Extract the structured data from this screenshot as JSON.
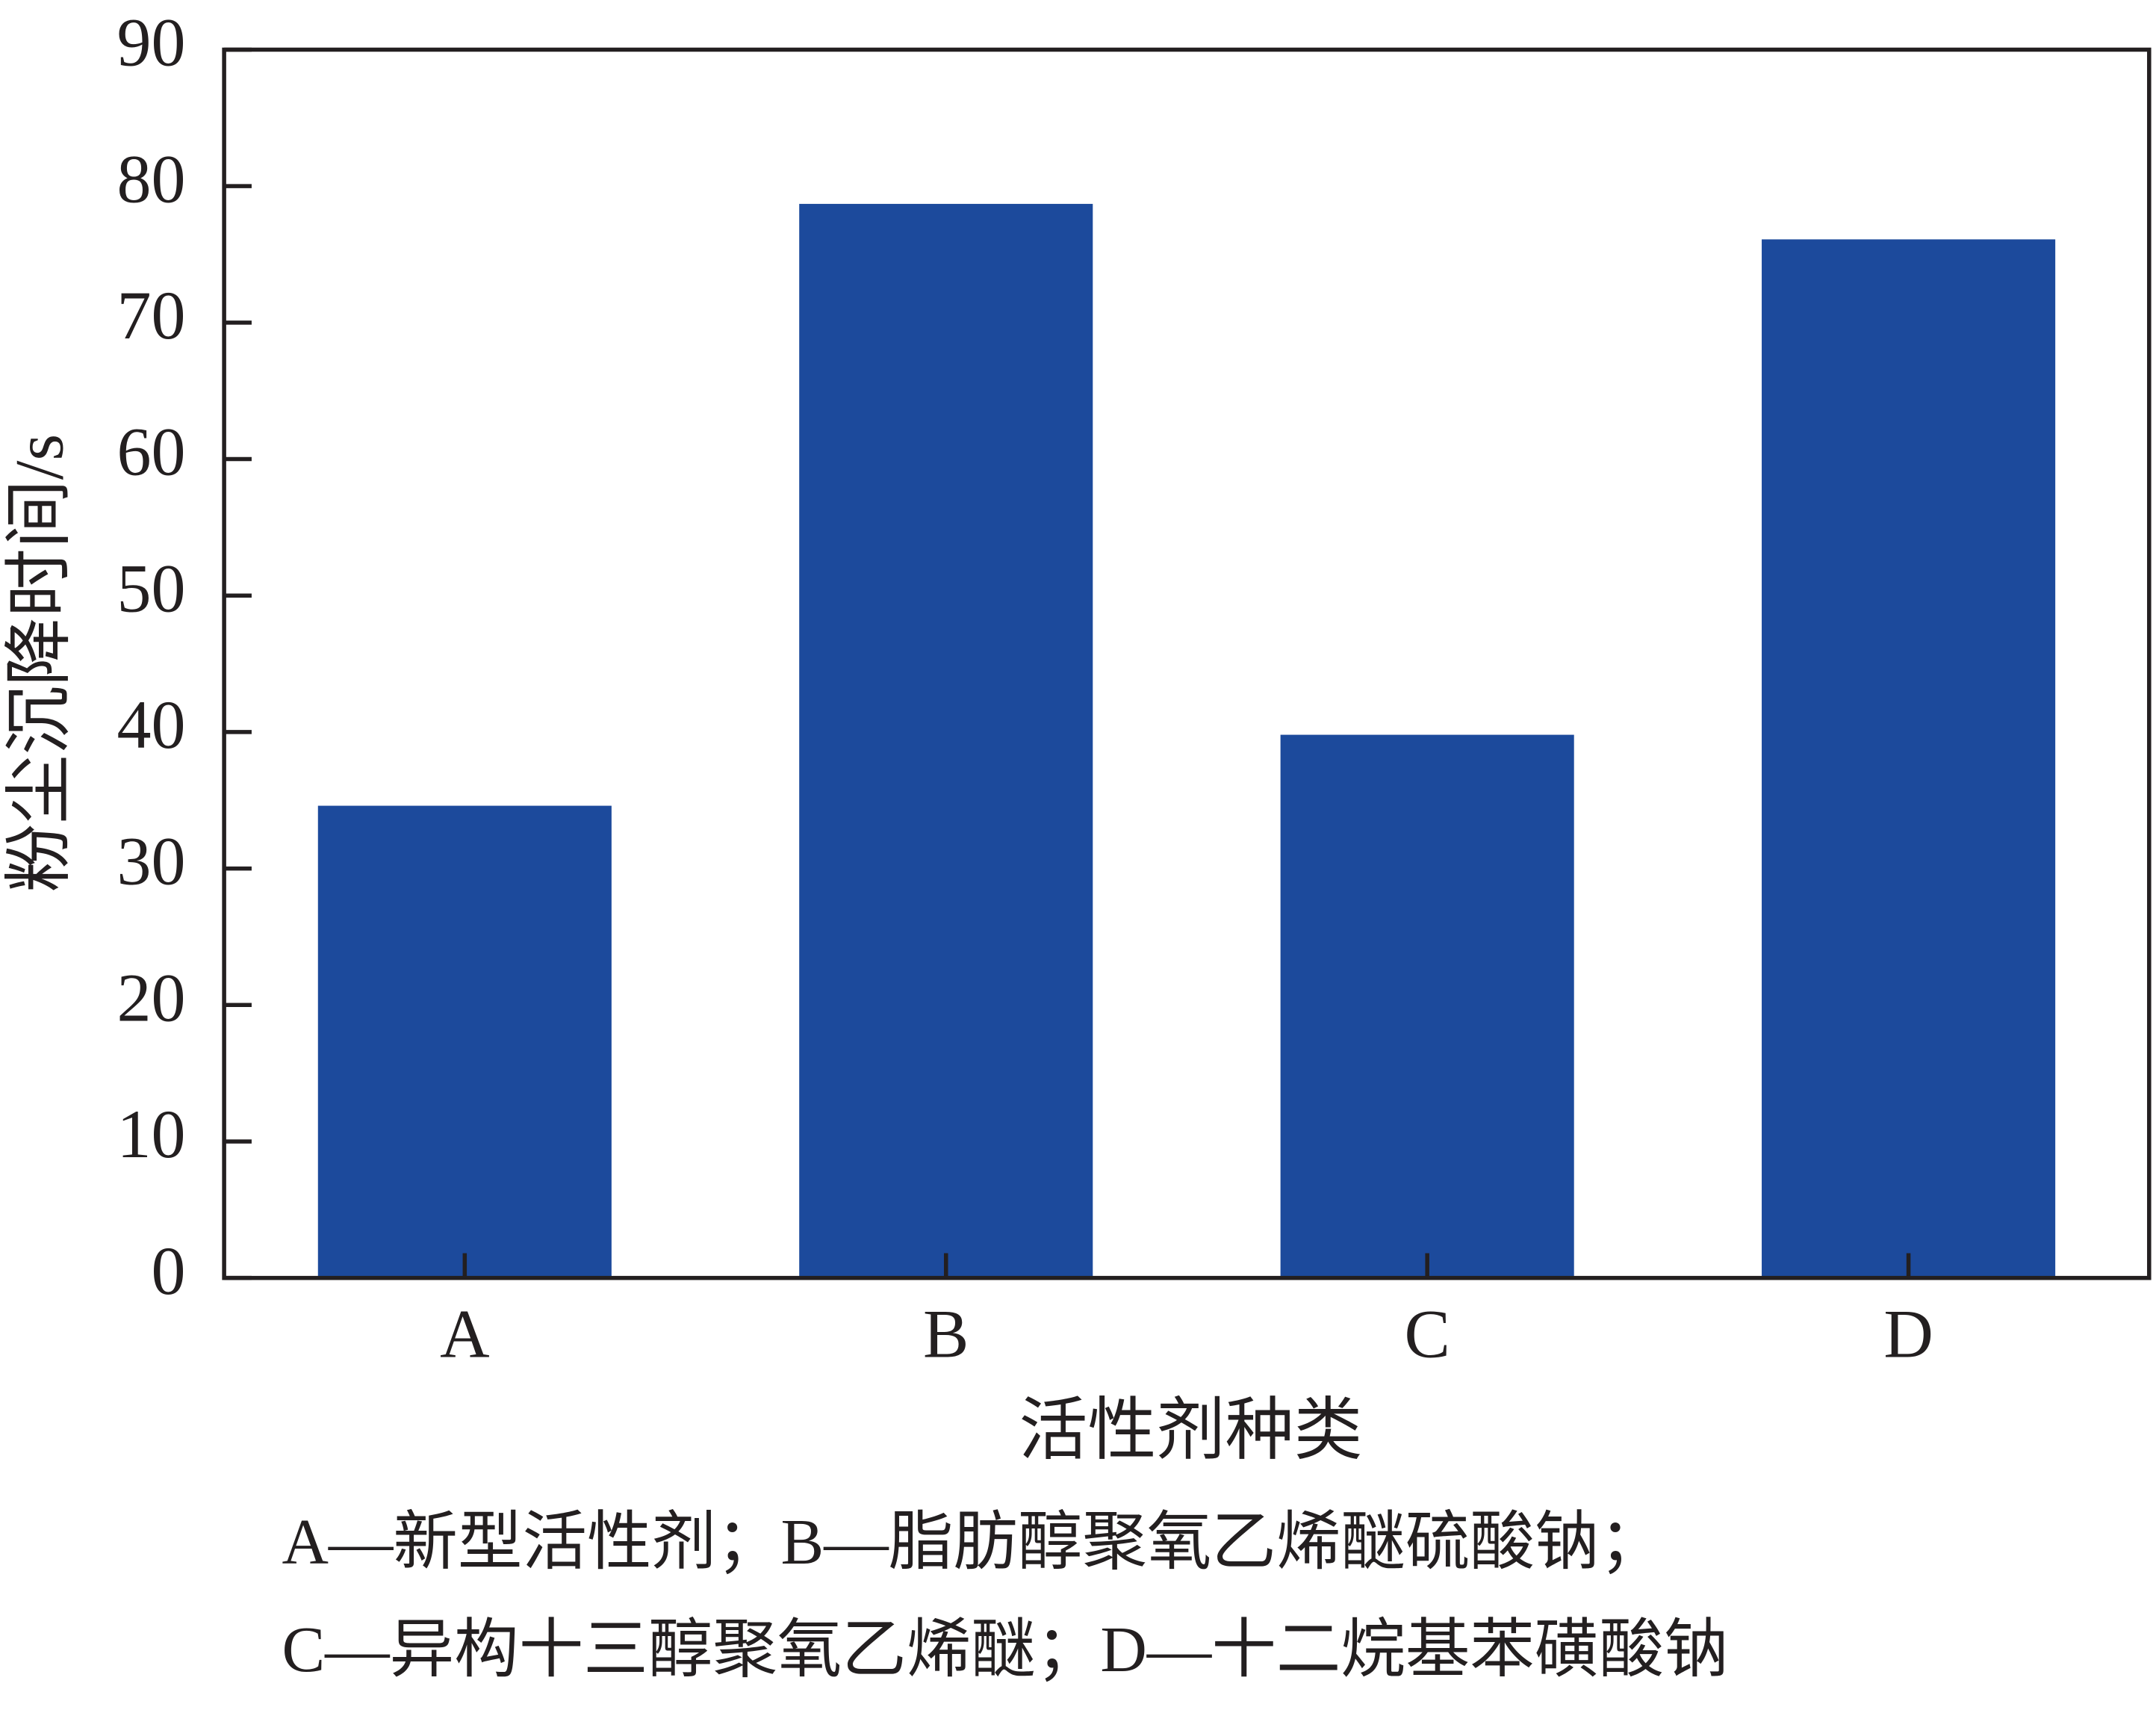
{
  "chart_data": {
    "type": "bar",
    "y_label": "粉尘沉降时间/s",
    "x_label": "活性剂种类",
    "notes": [
      "A—新型活性剂；B—脂肪醇聚氧乙烯醚硫酸钠；",
      "C—异构十三醇聚氧乙烯醚；D—十二烷基苯磺酸钠"
    ],
    "categories": [
      "A",
      "B",
      "C",
      "D"
    ],
    "values": [
      34.6,
      78.7,
      39.8,
      76.1
    ],
    "color": "#1c4a9c",
    "ylim": [
      0,
      90
    ],
    "yticks": [
      0,
      10,
      20,
      30,
      40,
      50,
      60,
      70,
      80,
      90
    ],
    "grid": false
  }
}
